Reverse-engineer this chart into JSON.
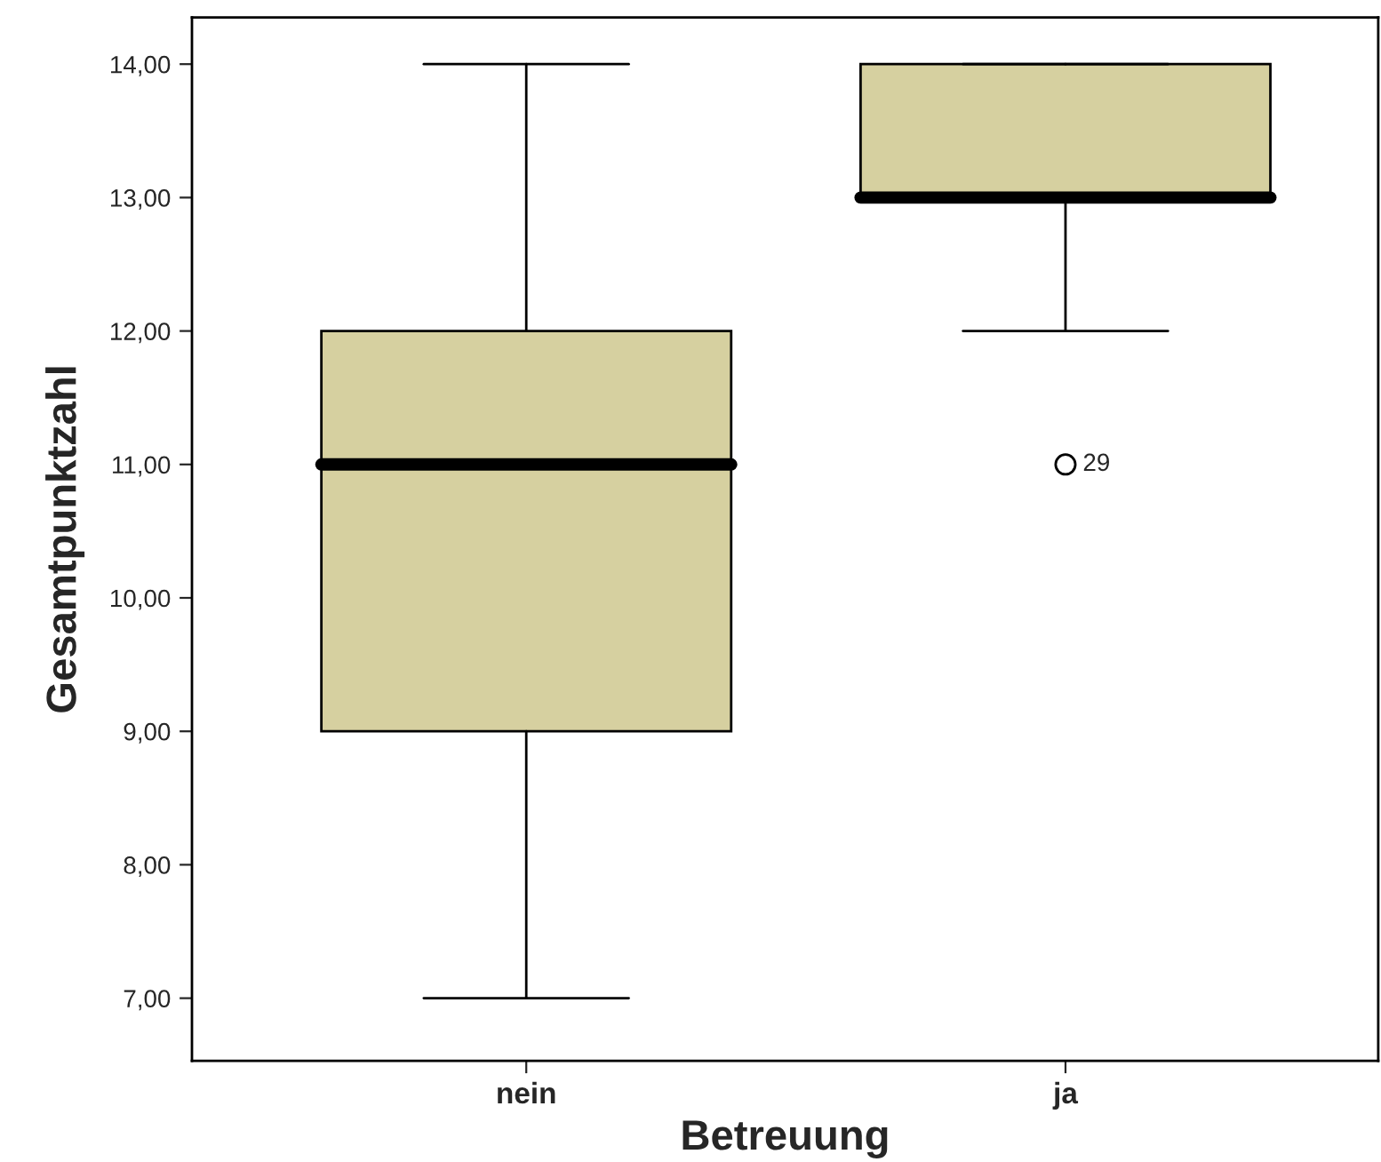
{
  "chart_data": {
    "type": "box",
    "xlabel": "Betreuung",
    "ylabel": "Gesamtpunktzahl",
    "categories": [
      "nein",
      "ja"
    ],
    "boxes": [
      {
        "low": 7,
        "q1": 9,
        "median": 11,
        "q3": 12,
        "high": 14
      },
      {
        "low": 12,
        "q1": 13,
        "median": 13,
        "q3": 14,
        "high": 14,
        "outliers": [
          11
        ]
      }
    ],
    "color": "#d6d0a0",
    "ylim": [
      6.53,
      14.35
    ],
    "yticks": [
      {
        "value": 7,
        "label": "7,00"
      },
      {
        "value": 8,
        "label": "8,00"
      },
      {
        "value": 9,
        "label": "9,00"
      },
      {
        "value": 10,
        "label": "10,00"
      },
      {
        "value": 11,
        "label": "11,00"
      },
      {
        "value": 12,
        "label": "12,00"
      },
      {
        "value": 13,
        "label": "13,00"
      },
      {
        "value": 14,
        "label": "14,00"
      }
    ],
    "annotations": [
      "29"
    ],
    "grid": false
  }
}
